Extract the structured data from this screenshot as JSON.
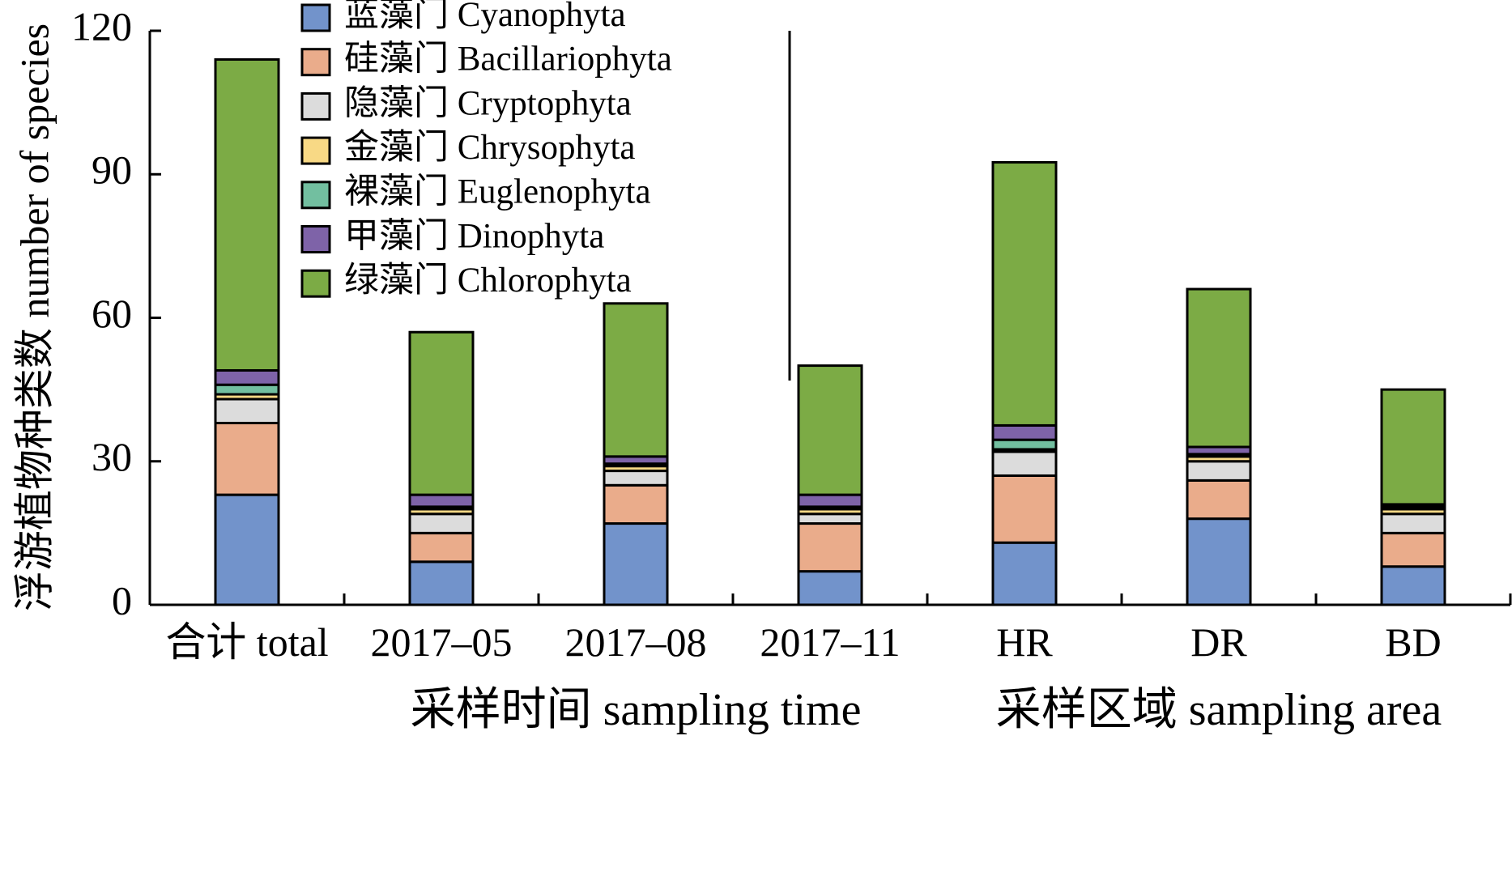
{
  "chart_data": {
    "type": "bar",
    "stacked": true,
    "ylabel": "浮游植物种类数 number of species",
    "ylim": [
      0,
      120
    ],
    "yticks": [
      0,
      30,
      60,
      90,
      120
    ],
    "categories": [
      "合计 total",
      "2017–05",
      "2017–08",
      "2017–11",
      "HR",
      "DR",
      "BD"
    ],
    "groups": [
      {
        "label": "采样时间 sampling time",
        "categories": [
          "2017–05",
          "2017–08",
          "2017–11"
        ]
      },
      {
        "label": "采样区域 sampling area",
        "categories": [
          "HR",
          "DR",
          "BD"
        ]
      }
    ],
    "legend_position": "top-left",
    "series": [
      {
        "name": "蓝藻门 Cyanophyta",
        "color": "#7293cb",
        "values": [
          23,
          9,
          17,
          7,
          13,
          18,
          8
        ]
      },
      {
        "name": "硅藻门 Bacillariophyta",
        "color": "#eaac8b",
        "values": [
          15,
          6,
          8,
          10,
          14,
          8,
          7
        ]
      },
      {
        "name": "隐藻门 Cryptophyta",
        "color": "#dcdcdc",
        "values": [
          5,
          4,
          3,
          2,
          5,
          4,
          4
        ]
      },
      {
        "name": "金藻门 Chrysophyta",
        "color": "#f8d985",
        "values": [
          1,
          1,
          1,
          1,
          0.5,
          1,
          1
        ]
      },
      {
        "name": "裸藻门 Euglenophyta",
        "color": "#72bfa0",
        "values": [
          2,
          0.5,
          0.5,
          0.5,
          2,
          0.5,
          0.5
        ]
      },
      {
        "name": "甲藻门 Dinophyta",
        "color": "#7e63a8",
        "values": [
          3,
          2.5,
          1.5,
          2.5,
          3,
          1.5,
          0.5
        ]
      },
      {
        "name": "绿藻门 Chlorophyta",
        "color": "#7cab45",
        "values": [
          65,
          34,
          32,
          27,
          55,
          33,
          24
        ]
      }
    ]
  }
}
